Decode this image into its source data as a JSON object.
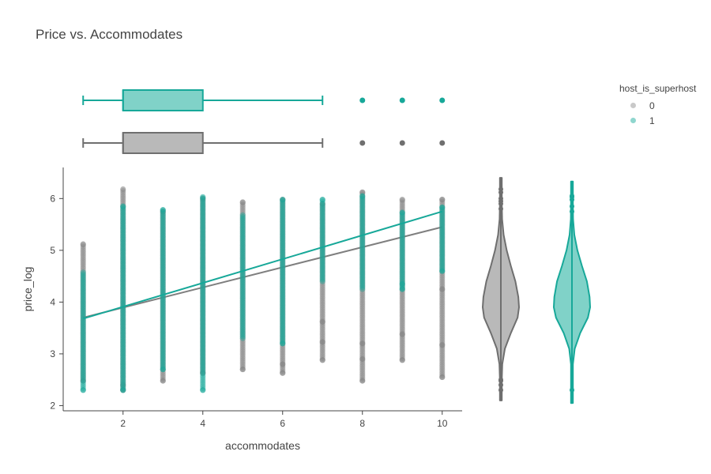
{
  "chart_data": {
    "type": "scatter",
    "title": "Price vs. Accommodates",
    "xlabel": "accommodates",
    "ylabel": "price_log",
    "xlim": [
      0.5,
      10.5
    ],
    "ylim": [
      1.9,
      6.6
    ],
    "x_ticks": [
      2,
      4,
      6,
      8,
      10
    ],
    "y_ticks": [
      2,
      3,
      4,
      5,
      6
    ],
    "grid": false,
    "legend": {
      "title": "host_is_superhost",
      "placement": "top-right",
      "items": [
        {
          "label": "0",
          "color": "#7f7f7f"
        },
        {
          "label": "1",
          "color": "#17a899"
        }
      ]
    },
    "series": [
      {
        "name": "0",
        "color": "#7f7f7f",
        "points": [
          {
            "x": 1,
            "ymin": 2.48,
            "ymax": 5.12,
            "outliers": [
              2.48,
              5.12
            ]
          },
          {
            "x": 2,
            "ymin": 2.3,
            "ymax": 6.18,
            "outliers": [
              2.3,
              2.4,
              6.18
            ]
          },
          {
            "x": 3,
            "ymin": 2.48,
            "ymax": 5.75,
            "outliers": [
              2.48,
              5.75
            ]
          },
          {
            "x": 4,
            "ymin": 2.63,
            "ymax": 6.0,
            "outliers": [
              2.63,
              6.0
            ]
          },
          {
            "x": 5,
            "ymin": 2.7,
            "ymax": 5.93,
            "outliers": [
              2.7,
              5.93
            ]
          },
          {
            "x": 6,
            "ymin": 2.63,
            "ymax": 5.98,
            "outliers": [
              2.63,
              2.8,
              5.98
            ]
          },
          {
            "x": 7,
            "ymin": 2.88,
            "ymax": 5.9,
            "outliers": [
              2.88,
              3.23,
              3.62,
              5.9
            ]
          },
          {
            "x": 8,
            "ymin": 2.48,
            "ymax": 6.12,
            "outliers": [
              2.48,
              2.9,
              3.2,
              6.12
            ]
          },
          {
            "x": 9,
            "ymin": 2.88,
            "ymax": 5.98,
            "outliers": [
              2.88,
              3.38,
              5.98
            ]
          },
          {
            "x": 10,
            "ymin": 2.55,
            "ymax": 5.98,
            "outliers": [
              2.55,
              3.17,
              4.25,
              5.98
            ]
          }
        ],
        "trendline": {
          "x": [
            1,
            10
          ],
          "y": [
            3.7,
            5.45
          ]
        }
      },
      {
        "name": "1",
        "color": "#17a899",
        "points": [
          {
            "x": 1,
            "ymin": 2.3,
            "ymax": 4.6,
            "outliers": [
              2.3
            ]
          },
          {
            "x": 2,
            "ymin": 2.3,
            "ymax": 5.85,
            "outliers": [
              2.3,
              5.85
            ]
          },
          {
            "x": 3,
            "ymin": 2.7,
            "ymax": 5.78,
            "outliers": [
              2.7,
              5.78
            ]
          },
          {
            "x": 4,
            "ymin": 2.3,
            "ymax": 6.03,
            "outliers": [
              2.3,
              6.03
            ]
          },
          {
            "x": 5,
            "ymin": 3.3,
            "ymax": 5.7,
            "outliers": []
          },
          {
            "x": 6,
            "ymin": 3.2,
            "ymax": 5.98,
            "outliers": [
              3.2,
              5.98
            ]
          },
          {
            "x": 7,
            "ymin": 4.4,
            "ymax": 5.98,
            "outliers": [
              5.98
            ]
          },
          {
            "x": 8,
            "ymin": 4.25,
            "ymax": 6.05,
            "outliers": [
              6.05
            ]
          },
          {
            "x": 9,
            "ymin": 4.25,
            "ymax": 5.73,
            "outliers": [
              4.25,
              4.35,
              5.73
            ]
          },
          {
            "x": 10,
            "ymin": 4.6,
            "ymax": 5.83,
            "outliers": [
              4.6,
              5.83
            ]
          }
        ],
        "trendline": {
          "x": [
            1,
            10
          ],
          "y": [
            3.68,
            5.75
          ]
        }
      }
    ],
    "marginal_x": {
      "type": "box",
      "boxes": [
        {
          "name": "1",
          "min": 1,
          "q1": 2,
          "median": 2,
          "q3": 4,
          "max": 7,
          "outliers": [
            8,
            9,
            10
          ]
        },
        {
          "name": "0",
          "min": 1,
          "q1": 2,
          "median": 2,
          "q3": 4,
          "max": 7,
          "outliers": [
            8,
            9,
            10
          ]
        }
      ]
    },
    "marginal_y": {
      "type": "violin",
      "violins": [
        {
          "name": "0",
          "min": 2.1,
          "max": 6.4,
          "center": 3.9,
          "density": [
            [
              2.1,
              0.01
            ],
            [
              2.5,
              0.03
            ],
            [
              2.8,
              0.08
            ],
            [
              3.1,
              0.22
            ],
            [
              3.4,
              0.55
            ],
            [
              3.7,
              0.92
            ],
            [
              3.9,
              1.0
            ],
            [
              4.1,
              0.96
            ],
            [
              4.4,
              0.8
            ],
            [
              4.7,
              0.55
            ],
            [
              5.0,
              0.32
            ],
            [
              5.3,
              0.15
            ],
            [
              5.6,
              0.07
            ],
            [
              5.9,
              0.03
            ],
            [
              6.2,
              0.015
            ],
            [
              6.4,
              0.01
            ]
          ],
          "outliers": [
            2.3,
            2.4,
            2.48,
            2.5,
            5.8,
            5.9,
            5.95,
            6.0,
            6.12,
            6.18
          ]
        },
        {
          "name": "1",
          "min": 2.05,
          "max": 6.33,
          "center": 3.95,
          "density": [
            [
              2.05,
              0.01
            ],
            [
              2.4,
              0.02
            ],
            [
              2.8,
              0.05
            ],
            [
              3.1,
              0.15
            ],
            [
              3.4,
              0.45
            ],
            [
              3.7,
              0.88
            ],
            [
              3.9,
              1.0
            ],
            [
              4.1,
              0.97
            ],
            [
              4.4,
              0.82
            ],
            [
              4.7,
              0.55
            ],
            [
              5.0,
              0.3
            ],
            [
              5.3,
              0.13
            ],
            [
              5.6,
              0.06
            ],
            [
              5.9,
              0.03
            ],
            [
              6.1,
              0.02
            ],
            [
              6.33,
              0.01
            ]
          ],
          "outliers": [
            2.3,
            5.75,
            5.85,
            5.98,
            6.03,
            6.05
          ]
        }
      ]
    }
  }
}
